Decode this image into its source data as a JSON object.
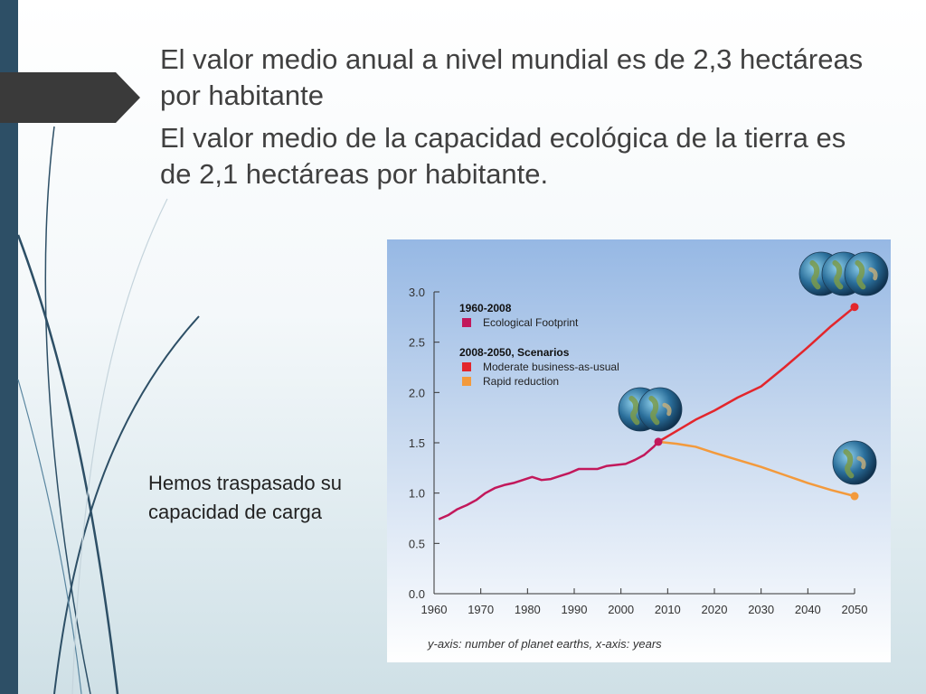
{
  "slide": {
    "title_line1": "El valor medio anual a nivel mundial es de 2,3 hectáreas por habitante",
    "title_line2": "El valor medio de la capacidad ecológica de la tierra es de 2,1 hectáreas por habitante.",
    "side_note": "Hemos traspasado su capacidad de carga",
    "colors": {
      "left_bar": "#2d4f66",
      "arrow": "#3a3a3a",
      "deco_lines": "#2d4f66"
    }
  },
  "chart_data": {
    "type": "line",
    "title": "",
    "xlabel": "",
    "ylabel": "",
    "caption": "y-axis: number of planet earths, x-axis: years",
    "xlim": [
      1960,
      2050
    ],
    "ylim": [
      0,
      3.0
    ],
    "x_ticks": [
      "1960",
      "1970",
      "1980",
      "1990",
      "2000",
      "2010",
      "2020",
      "2030",
      "2040",
      "2050"
    ],
    "y_ticks": [
      "0.0",
      "0.5",
      "1.0",
      "1.5",
      "2.0",
      "2.5",
      "3.0"
    ],
    "legend": {
      "group1_title": "1960-2008",
      "group2_title": "2008-2050, Scenarios"
    },
    "series": [
      {
        "name": "Ecological Footprint",
        "color": "#c2185b",
        "x": [
          1961,
          1963,
          1965,
          1967,
          1969,
          1971,
          1973,
          1975,
          1977,
          1979,
          1981,
          1983,
          1985,
          1987,
          1989,
          1991,
          1993,
          1995,
          1997,
          1999,
          2001,
          2003,
          2005,
          2007,
          2008
        ],
        "y": [
          0.74,
          0.78,
          0.84,
          0.88,
          0.93,
          1.0,
          1.05,
          1.08,
          1.1,
          1.13,
          1.16,
          1.13,
          1.14,
          1.17,
          1.2,
          1.24,
          1.24,
          1.24,
          1.27,
          1.28,
          1.29,
          1.33,
          1.38,
          1.46,
          1.51
        ]
      },
      {
        "name": "Moderate business-as-usual",
        "color": "#e3262c",
        "x": [
          2008,
          2012,
          2016,
          2020,
          2025,
          2030,
          2035,
          2040,
          2045,
          2050
        ],
        "y": [
          1.51,
          1.62,
          1.73,
          1.82,
          1.95,
          2.06,
          2.25,
          2.45,
          2.66,
          2.85
        ]
      },
      {
        "name": "Rapid reduction",
        "color": "#f39a3c",
        "x": [
          2008,
          2012,
          2016,
          2020,
          2025,
          2030,
          2035,
          2040,
          2045,
          2050
        ],
        "y": [
          1.51,
          1.49,
          1.46,
          1.4,
          1.33,
          1.26,
          1.18,
          1.1,
          1.03,
          0.97
        ]
      }
    ],
    "icons": [
      "globe-icon-three",
      "globe-icon-two",
      "globe-icon-one"
    ]
  }
}
